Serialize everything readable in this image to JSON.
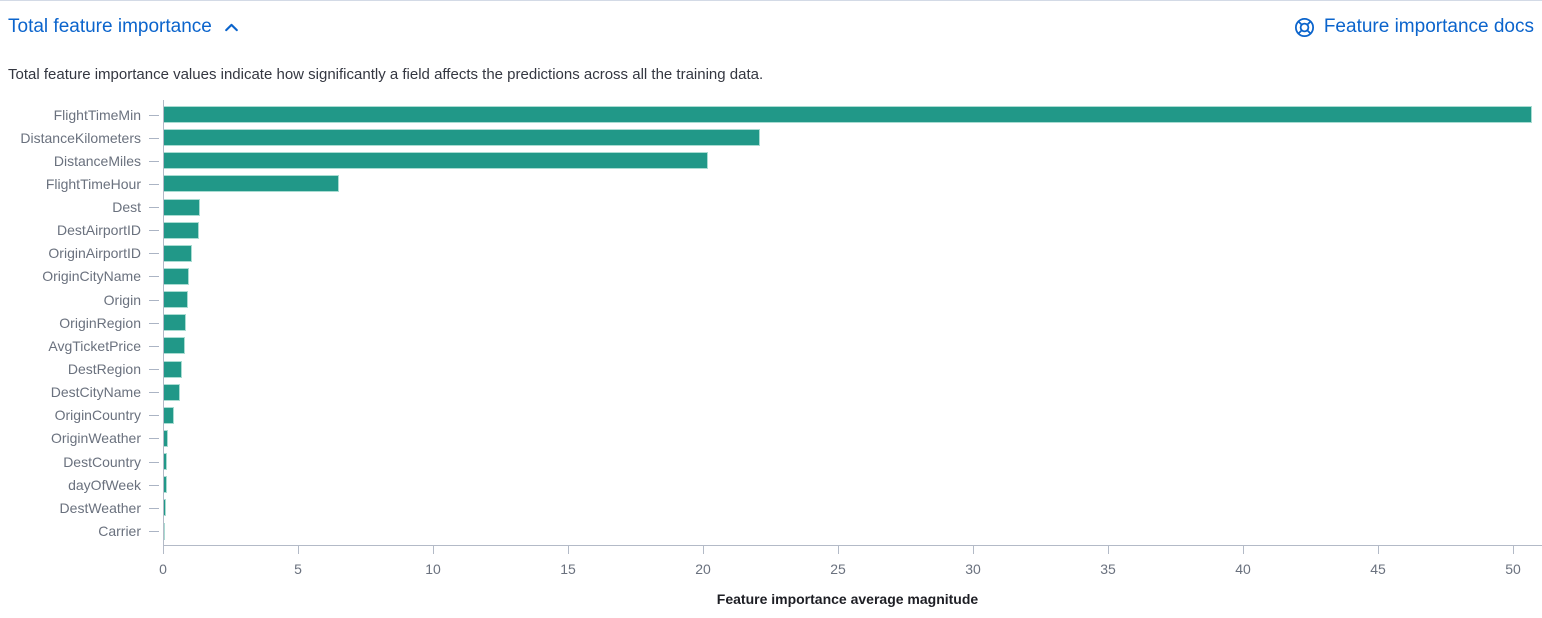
{
  "header": {
    "title": "Total feature importance",
    "docs_link": "Feature importance docs"
  },
  "description": "Total feature importance values indicate how significantly a field affects the predictions across all the training data.",
  "colors": {
    "bar": "#219888",
    "bar_border": "#a9dcd2",
    "link_blue": "#0b64cc",
    "axis_text": "#6a717e",
    "axis_line": "#b3bac7",
    "description_text": "#343741",
    "axis_title_text": "#1d1e24"
  },
  "chart_data": {
    "type": "bar",
    "orientation": "horizontal",
    "title": "",
    "xlabel": "Feature importance average magnitude",
    "ylabel": "",
    "categories": [
      "FlightTimeMin",
      "DistanceKilometers",
      "DistanceMiles",
      "FlightTimeHour",
      "Dest",
      "DestAirportID",
      "OriginAirportID",
      "OriginCityName",
      "Origin",
      "OriginRegion",
      "AvgTicketPrice",
      "DestRegion",
      "DestCityName",
      "OriginCountry",
      "OriginWeather",
      "DestCountry",
      "dayOfWeek",
      "DestWeather",
      "Carrier"
    ],
    "values": [
      50.7,
      22.1,
      20.2,
      6.5,
      1.37,
      1.32,
      1.07,
      0.97,
      0.94,
      0.85,
      0.8,
      0.7,
      0.64,
      0.42,
      0.18,
      0.16,
      0.15,
      0.1,
      0.05
    ],
    "x_ticks": [
      0,
      5,
      10,
      15,
      20,
      25,
      30,
      35,
      40,
      45,
      50
    ],
    "xlim": [
      0,
      50.7
    ],
    "grid": false,
    "legend": false
  }
}
